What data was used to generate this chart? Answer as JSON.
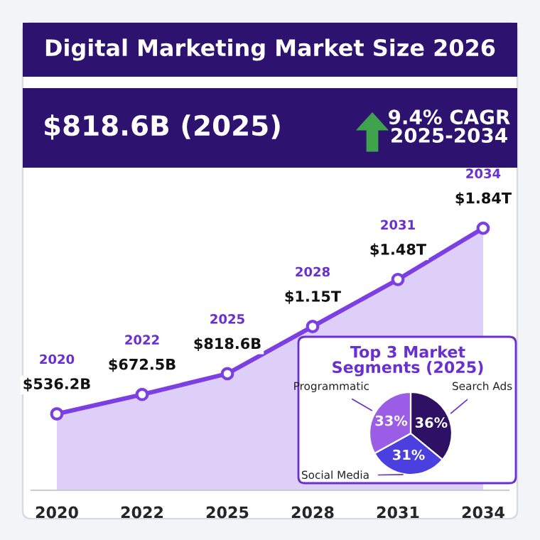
{
  "chart_data": [
    {
      "type": "area",
      "title": "Digital Marketing Market Size 2026",
      "annotations": [
        "$818.6B (2025)",
        "9.4% CAGR\n2025-2034",
        "2020",
        "2022",
        "2025",
        "2028",
        "2031",
        "2034"
      ],
      "categories": [
        "2020",
        "2022",
        "2025",
        "2028",
        "2031",
        "2034"
      ],
      "series": [
        {
          "color": "#7b3fe4",
          "values": [
            536200000000,
            672500000000,
            818600000000,
            1150000000000,
            1480000000000,
            1840000000000
          ],
          "value_labels": [
            "$536.2B",
            "$672.5B",
            "$818.6B",
            "$1.15T",
            "$1.48T",
            "$1.84T"
          ]
        }
      ],
      "marker": "circle",
      "grid": false,
      "legend": false,
      "tick_labels": "x"
    },
    {
      "type": "pie",
      "title": "Top 3 Market\nSegments (2025)",
      "categories": [
        "Search Ads",
        "Social Media",
        "Programmatic"
      ],
      "values": [
        36,
        31,
        33
      ],
      "colors": [
        "#2e1065",
        "#4c3fe0",
        "#9b5de5"
      ],
      "value_labels": [
        "36%",
        "31%",
        "33%"
      ]
    }
  ]
}
